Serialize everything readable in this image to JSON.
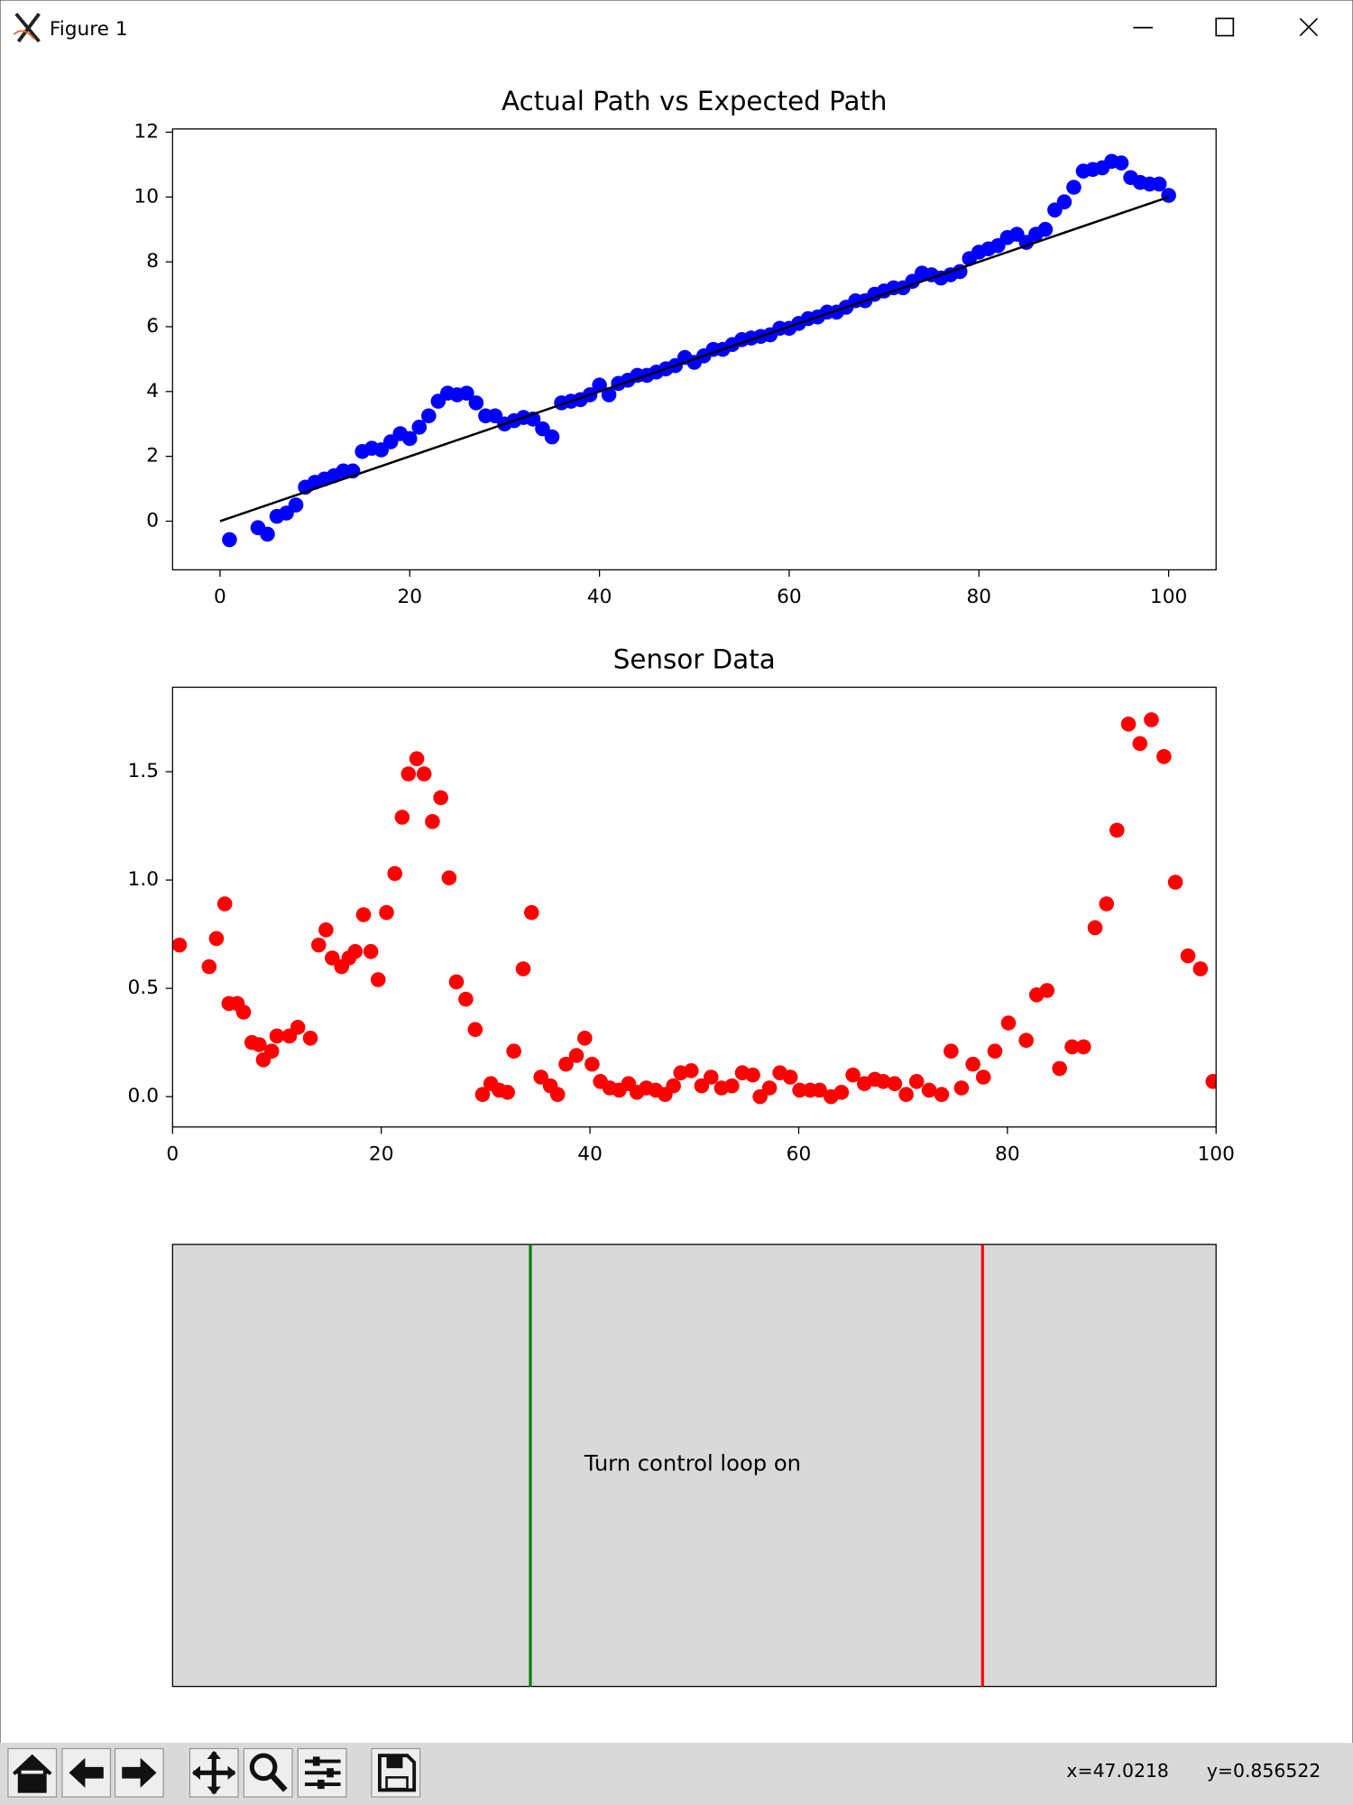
{
  "window": {
    "title": "Figure 1"
  },
  "chart_data": [
    {
      "type": "scatter",
      "title": "Actual Path vs Expected Path",
      "xlim": [
        -5,
        105
      ],
      "ylim": [
        -1.5,
        12.1
      ],
      "xticks": [
        0,
        20,
        40,
        60,
        80,
        100
      ],
      "yticks": [
        0,
        2,
        4,
        6,
        8,
        10,
        12
      ],
      "series": [
        {
          "type": "scatter",
          "color": "#0000ff",
          "x": [
            1,
            4,
            5,
            6,
            7,
            8,
            9,
            10,
            11,
            12,
            13,
            14,
            15,
            16,
            17,
            18,
            19,
            20,
            21,
            22,
            23,
            24,
            25,
            26,
            27,
            28,
            29,
            30,
            31,
            32,
            33,
            34,
            35,
            36,
            37,
            38,
            39,
            40,
            41,
            42,
            43,
            44,
            45,
            46,
            47,
            48,
            49,
            50,
            51,
            52,
            53,
            54,
            55,
            56,
            57,
            58,
            59,
            60,
            61,
            62,
            63,
            64,
            65,
            66,
            67,
            68,
            69,
            70,
            71,
            72,
            73,
            74,
            75,
            76,
            77,
            78,
            79,
            80,
            81,
            82,
            83,
            84,
            85,
            86,
            87,
            88,
            89,
            90,
            91,
            92,
            93,
            94,
            95,
            96,
            97,
            98,
            99,
            100
          ],
          "values": [
            -0.57,
            -0.2,
            -0.4,
            0.15,
            0.25,
            0.5,
            1.05,
            1.2,
            1.3,
            1.4,
            1.55,
            1.55,
            2.15,
            2.25,
            2.2,
            2.45,
            2.7,
            2.55,
            2.9,
            3.25,
            3.7,
            3.95,
            3.9,
            3.95,
            3.65,
            3.25,
            3.25,
            3.0,
            3.1,
            3.2,
            3.15,
            2.85,
            2.6,
            3.65,
            3.7,
            3.75,
            3.9,
            4.2,
            3.9,
            4.25,
            4.35,
            4.5,
            4.5,
            4.6,
            4.7,
            4.8,
            5.05,
            4.9,
            5.1,
            5.3,
            5.3,
            5.45,
            5.6,
            5.65,
            5.7,
            5.75,
            5.95,
            5.95,
            6.1,
            6.25,
            6.3,
            6.45,
            6.45,
            6.6,
            6.8,
            6.8,
            7.0,
            7.1,
            7.2,
            7.2,
            7.4,
            7.65,
            7.6,
            7.5,
            7.6,
            7.7,
            8.1,
            8.3,
            8.4,
            8.5,
            8.75,
            8.85,
            8.6,
            8.85,
            9.0,
            9.6,
            9.85,
            10.3,
            10.8,
            10.85,
            10.9,
            11.1,
            11.05,
            10.6,
            10.45,
            10.4,
            10.4,
            10.05
          ]
        },
        {
          "type": "line",
          "color": "#000000",
          "x": [
            0,
            100
          ],
          "values": [
            0,
            10
          ]
        }
      ]
    },
    {
      "type": "scatter",
      "title": "Sensor Data",
      "xlim": [
        0,
        100
      ],
      "ylim": [
        -0.14,
        1.89
      ],
      "xticks": [
        0,
        20,
        40,
        60,
        80,
        100
      ],
      "yticks": [
        {
          "value": 0,
          "label": "0.0"
        },
        0.5,
        {
          "value": 1,
          "label": "1.0"
        },
        1.5
      ],
      "series": [
        {
          "type": "scatter",
          "color": "#ff0000",
          "x": [
            0.66,
            3.5,
            4.2,
            5.0,
            5.4,
            6.2,
            6.8,
            7.6,
            8.3,
            8.7,
            9.5,
            10.0,
            11.2,
            12.0,
            13.2,
            14.0,
            14.7,
            15.3,
            16.2,
            16.9,
            17.5,
            18.3,
            19.0,
            19.7,
            20.5,
            21.3,
            22.0,
            22.6,
            23.4,
            24.1,
            24.9,
            25.7,
            26.5,
            27.2,
            28.1,
            29.0,
            29.7,
            30.5,
            31.3,
            32.1,
            32.7,
            33.6,
            34.4,
            35.3,
            36.2,
            36.9,
            37.7,
            38.7,
            39.5,
            40.2,
            41.0,
            41.9,
            42.8,
            43.7,
            44.5,
            45.4,
            46.3,
            47.2,
            48.0,
            48.7,
            49.7,
            50.7,
            51.6,
            52.6,
            53.6,
            54.6,
            55.6,
            56.3,
            57.2,
            58.2,
            59.2,
            60.1,
            61.1,
            62.0,
            63.1,
            64.1,
            65.2,
            66.3,
            67.3,
            68.1,
            69.2,
            70.3,
            71.3,
            72.5,
            73.7,
            74.6,
            75.6,
            76.7,
            77.7,
            78.8,
            80.1,
            81.8,
            82.8,
            83.8,
            85.0,
            86.2,
            87.3,
            88.4,
            89.5,
            90.5,
            91.6,
            92.7,
            93.8,
            95.0,
            96.1,
            97.3,
            98.5,
            99.7
          ],
          "values": [
            0.7,
            0.6,
            0.73,
            0.89,
            0.43,
            0.43,
            0.39,
            0.25,
            0.24,
            0.17,
            0.21,
            0.28,
            0.28,
            0.32,
            0.27,
            0.7,
            0.77,
            0.64,
            0.6,
            0.64,
            0.67,
            0.84,
            0.67,
            0.54,
            0.85,
            1.03,
            1.29,
            1.49,
            1.56,
            1.49,
            1.27,
            1.38,
            1.01,
            0.53,
            0.45,
            0.31,
            0.01,
            0.06,
            0.03,
            0.02,
            0.21,
            0.59,
            0.85,
            0.09,
            0.05,
            0.01,
            0.15,
            0.19,
            0.27,
            0.15,
            0.07,
            0.04,
            0.03,
            0.06,
            0.02,
            0.04,
            0.03,
            0.01,
            0.05,
            0.11,
            0.12,
            0.05,
            0.09,
            0.04,
            0.05,
            0.11,
            0.1,
            0.0,
            0.04,
            0.11,
            0.09,
            0.03,
            0.03,
            0.03,
            0.0,
            0.02,
            0.1,
            0.06,
            0.08,
            0.07,
            0.06,
            0.01,
            0.07,
            0.03,
            0.01,
            0.21,
            0.04,
            0.15,
            0.09,
            0.21,
            0.34,
            0.26,
            0.47,
            0.49,
            0.13,
            0.23,
            0.23,
            0.78,
            0.89,
            1.23,
            1.72,
            1.63,
            1.74,
            1.57,
            0.99,
            0.65,
            0.59,
            0.07
          ]
        }
      ]
    }
  ],
  "button": {
    "label": "Turn control loop on"
  },
  "status": {
    "x": "x=47.0218",
    "y": "y=0.856522"
  }
}
